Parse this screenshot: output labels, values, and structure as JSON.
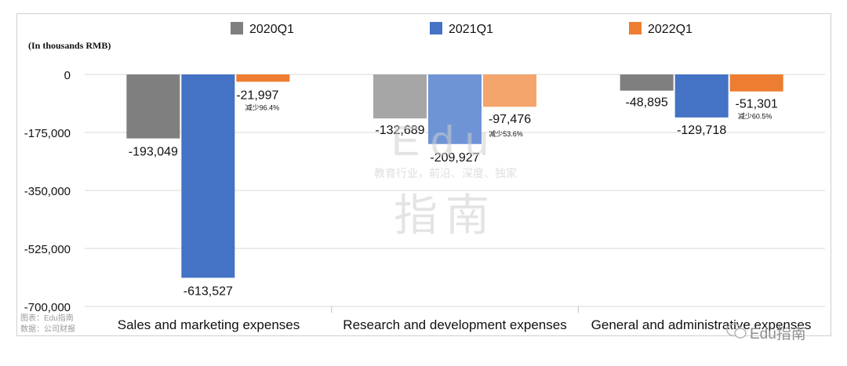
{
  "chart_data": {
    "type": "bar",
    "title": "",
    "unit_label": "(In thousands RMB)",
    "categories": [
      "Sales and marketing expenses",
      "Research and development expenses",
      "General and administrative expenses"
    ],
    "series": [
      {
        "name": "2020Q1",
        "color": "#7f7f7f",
        "values": [
          -193049,
          -132689,
          -48895
        ],
        "labels": [
          "-193,049",
          "-132,689",
          "-48,895"
        ]
      },
      {
        "name": "2021Q1",
        "color": "#4472c4",
        "values": [
          -613527,
          -209927,
          -129718
        ],
        "labels": [
          "-613,527",
          "-209,927",
          "-129,718"
        ]
      },
      {
        "name": "2022Q1",
        "color": "#ed7d31",
        "values": [
          -21997,
          -97476,
          -51301
        ],
        "labels": [
          "-21,997",
          "-97,476",
          "-51,301"
        ]
      }
    ],
    "annotations": [
      "减少96.4%",
      "减少53.6%",
      "减少60.5%"
    ],
    "yticks": [
      0,
      -175000,
      -350000,
      -525000,
      -700000
    ],
    "ytick_labels": [
      "0",
      "-175,000",
      "-350,000",
      "-525,000",
      "-700,000"
    ],
    "ylim": [
      -700000,
      0
    ],
    "grid": true,
    "legend": "top"
  },
  "watermark": {
    "logo_text": "Edu",
    "slogan": "教育行业，前沿、深度、独家",
    "big_text": "指南",
    "chart_source": "图表：Edu指南",
    "data_source": "数据：公司财报",
    "brand": "Edu指南",
    "icon": "wechat-icon"
  }
}
